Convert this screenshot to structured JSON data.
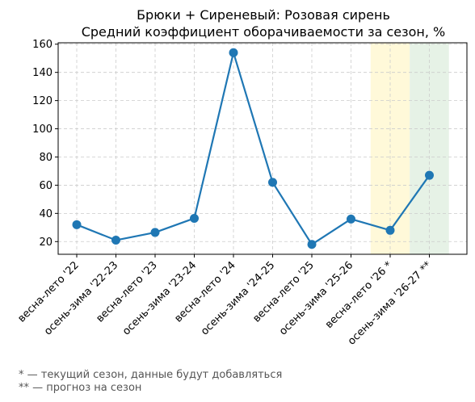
{
  "chart_data": {
    "type": "line",
    "title": "Брюки + Сиреневый: Розовая сирень",
    "subtitle": "Средний коэффициент оборачиваемости за сезон, %",
    "categories": [
      "весна-лето '22",
      "осень-зима '22-23",
      "весна-лето '23",
      "осень-зима '23-24",
      "весна-лето '24",
      "осень-зима '24-25",
      "весна-лето '25",
      "осень-зима '25-26",
      "весна-лето '26 *",
      "осень-зима '26-27 **"
    ],
    "series": [
      {
        "values": [
          32,
          21,
          26.5,
          36.5,
          154,
          62,
          18,
          36,
          28,
          67
        ]
      }
    ],
    "ylim": [
      11,
      161
    ],
    "yticks": [
      20,
      40,
      60,
      80,
      100,
      120,
      140,
      160
    ],
    "grid": true,
    "highlights": [
      {
        "category_index": 8,
        "color": "#fff9d9"
      },
      {
        "category_index": 9,
        "color": "#e6f2e6"
      }
    ],
    "line_color": "#1f77b4",
    "footnotes": [
      "* — текущий сезон, данные будут добавляться",
      "** — прогноз на сезон"
    ]
  }
}
